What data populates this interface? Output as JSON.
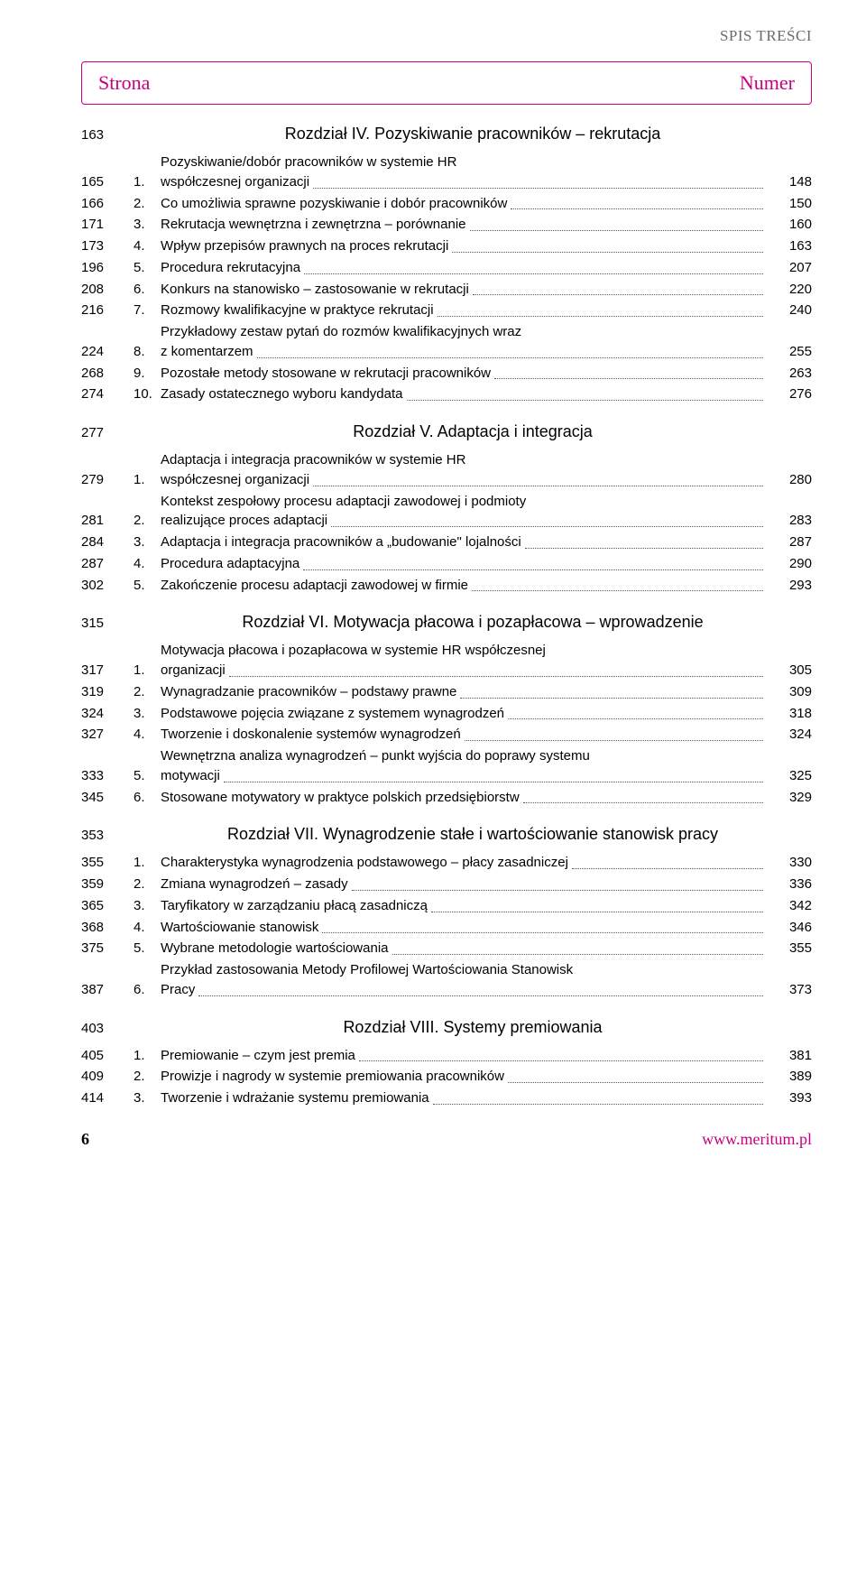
{
  "colors": {
    "accent": "#c6007e",
    "text": "#000000",
    "running_head": "#6a6a6a",
    "leader": "#555555",
    "bg": "#ffffff"
  },
  "fonts": {
    "body": "Arial, Helvetica, sans-serif",
    "display": "Georgia, 'Times New Roman', serif",
    "body_size_pt": 11,
    "chapter_size_pt": 14,
    "header_size_pt": 17
  },
  "running_head": "SPIS TREŚCI",
  "header": {
    "left": "Strona",
    "right": "Numer"
  },
  "chapters": [
    {
      "page": "163",
      "title": "Rozdział IV. Pozyskiwanie pracowników – rekrutacja",
      "items": [
        {
          "pgL": "165",
          "num": "1.",
          "lines": [
            "Pozyskiwanie/dobór pracowników w systemie HR",
            "współczesnej organizacji"
          ],
          "pgR": "148"
        },
        {
          "pgL": "166",
          "num": "2.",
          "lines": [
            "Co umożliwia sprawne pozyskiwanie i dobór pracowników"
          ],
          "pgR": "150"
        },
        {
          "pgL": "171",
          "num": "3.",
          "lines": [
            "Rekrutacja wewnętrzna i zewnętrzna – porównanie"
          ],
          "pgR": "160"
        },
        {
          "pgL": "173",
          "num": "4.",
          "lines": [
            "Wpływ przepisów prawnych na proces rekrutacji"
          ],
          "pgR": "163"
        },
        {
          "pgL": "196",
          "num": "5.",
          "lines": [
            "Procedura rekrutacyjna"
          ],
          "pgR": "207"
        },
        {
          "pgL": "208",
          "num": "6.",
          "lines": [
            "Konkurs na stanowisko – zastosowanie w rekrutacji"
          ],
          "pgR": "220"
        },
        {
          "pgL": "216",
          "num": "7.",
          "lines": [
            "Rozmowy kwalifikacyjne w praktyce rekrutacji"
          ],
          "pgR": "240"
        },
        {
          "pgL": "224",
          "num": "8.",
          "lines": [
            "Przykładowy zestaw pytań do rozmów kwalifikacyjnych wraz",
            "z komentarzem"
          ],
          "pgR": "255"
        },
        {
          "pgL": "268",
          "num": "9.",
          "lines": [
            "Pozostałe metody stosowane w rekrutacji pracowników"
          ],
          "pgR": "263"
        },
        {
          "pgL": "274",
          "num": "10.",
          "lines": [
            "Zasady ostatecznego wyboru kandydata"
          ],
          "pgR": "276"
        }
      ]
    },
    {
      "page": "277",
      "title": "Rozdział V. Adaptacja i integracja",
      "items": [
        {
          "pgL": "279",
          "num": "1.",
          "lines": [
            "Adaptacja i integracja pracowników w systemie HR",
            "współczesnej organizacji"
          ],
          "pgR": "280"
        },
        {
          "pgL": "281",
          "num": "2.",
          "lines": [
            "Kontekst zespołowy procesu adaptacji zawodowej i podmioty",
            "realizujące proces adaptacji"
          ],
          "pgR": "283"
        },
        {
          "pgL": "284",
          "num": "3.",
          "lines": [
            "Adaptacja i integracja pracowników a „budowanie\" lojalności"
          ],
          "pgR": "287"
        },
        {
          "pgL": "287",
          "num": "4.",
          "lines": [
            "Procedura adaptacyjna"
          ],
          "pgR": "290"
        },
        {
          "pgL": "302",
          "num": "5.",
          "lines": [
            "Zakończenie procesu adaptacji zawodowej w firmie"
          ],
          "pgR": "293"
        }
      ]
    },
    {
      "page": "315",
      "title": "Rozdział VI. Motywacja płacowa i pozapłacowa – wprowadzenie",
      "items": [
        {
          "pgL": "317",
          "num": "1.",
          "lines": [
            "Motywacja płacowa i pozapłacowa w systemie HR współczesnej",
            "organizacji"
          ],
          "pgR": "305"
        },
        {
          "pgL": "319",
          "num": "2.",
          "lines": [
            "Wynagradzanie pracowników – podstawy prawne"
          ],
          "pgR": "309"
        },
        {
          "pgL": "324",
          "num": "3.",
          "lines": [
            "Podstawowe pojęcia związane z systemem wynagrodzeń"
          ],
          "pgR": "318"
        },
        {
          "pgL": "327",
          "num": "4.",
          "lines": [
            "Tworzenie i doskonalenie systemów wynagrodzeń"
          ],
          "pgR": "324"
        },
        {
          "pgL": "333",
          "num": "5.",
          "lines": [
            "Wewnętrzna analiza wynagrodzeń – punkt wyjścia do poprawy systemu",
            "motywacji"
          ],
          "pgR": "325"
        },
        {
          "pgL": "345",
          "num": "6.",
          "lines": [
            "Stosowane motywatory w praktyce polskich przedsiębiorstw"
          ],
          "pgR": "329"
        }
      ]
    },
    {
      "page": "353",
      "title": "Rozdział VII. Wynagrodzenie stałe i wartościowanie stanowisk pracy",
      "items": [
        {
          "pgL": "355",
          "num": "1.",
          "lines": [
            "Charakterystyka wynagrodzenia podstawowego – płacy zasadniczej"
          ],
          "pgR": "330"
        },
        {
          "pgL": "359",
          "num": "2.",
          "lines": [
            "Zmiana wynagrodzeń – zasady"
          ],
          "pgR": "336"
        },
        {
          "pgL": "365",
          "num": "3.",
          "lines": [
            "Taryfikatory w zarządzaniu płacą zasadniczą"
          ],
          "pgR": "342"
        },
        {
          "pgL": "368",
          "num": "4.",
          "lines": [
            "Wartościowanie stanowisk"
          ],
          "pgR": "346"
        },
        {
          "pgL": "375",
          "num": "5.",
          "lines": [
            "Wybrane metodologie wartościowania"
          ],
          "pgR": "355"
        },
        {
          "pgL": "387",
          "num": "6.",
          "lines": [
            "Przykład zastosowania Metody Profilowej Wartościowania Stanowisk",
            "Pracy"
          ],
          "pgR": "373"
        }
      ]
    },
    {
      "page": "403",
      "title": "Rozdział VIII. Systemy premiowania",
      "items": [
        {
          "pgL": "405",
          "num": "1.",
          "lines": [
            "Premiowanie – czym jest premia"
          ],
          "pgR": "381"
        },
        {
          "pgL": "409",
          "num": "2.",
          "lines": [
            "Prowizje i nagrody w systemie premiowania pracowników"
          ],
          "pgR": "389"
        },
        {
          "pgL": "414",
          "num": "3.",
          "lines": [
            "Tworzenie i wdrażanie systemu premiowania"
          ],
          "pgR": "393"
        }
      ]
    }
  ],
  "footer": {
    "page_number": "6",
    "url": "www.meritum.pl"
  }
}
